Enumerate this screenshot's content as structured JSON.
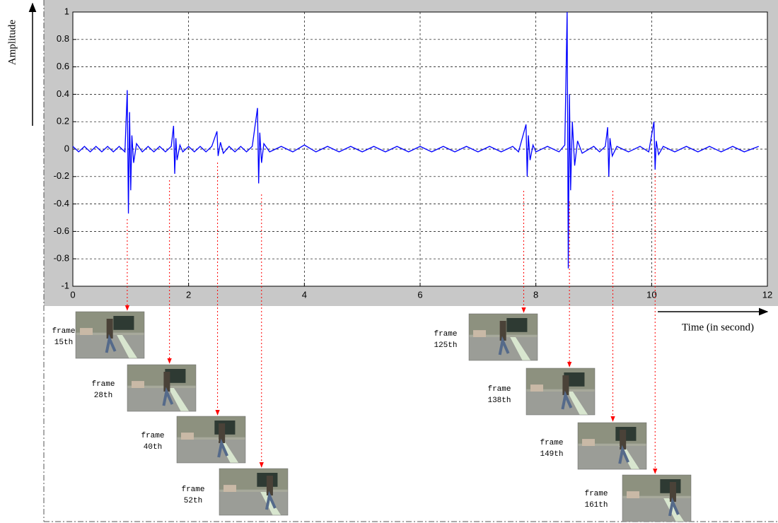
{
  "chart_data": {
    "type": "line",
    "y_label": "Amplitude",
    "x_label": "Time (in second)",
    "color": "#0000ff",
    "frame_arrow_color": "#ff0000",
    "grid": true,
    "xlim": [
      0,
      12
    ],
    "ylim": [
      -1,
      1
    ],
    "xticks": [
      0,
      2,
      4,
      6,
      8,
      10,
      12
    ],
    "yticks": [
      -1,
      -0.8,
      -0.6,
      -0.4,
      -0.2,
      0,
      0.2,
      0.4,
      0.6,
      0.8,
      1
    ],
    "x": [
      0,
      0.1,
      0.2,
      0.3,
      0.4,
      0.5,
      0.6,
      0.7,
      0.8,
      0.9,
      0.94,
      0.96,
      0.98,
      1.0,
      1.02,
      1.05,
      1.1,
      1.2,
      1.3,
      1.4,
      1.5,
      1.6,
      1.7,
      1.74,
      1.76,
      1.78,
      1.8,
      1.85,
      1.9,
      2.0,
      2.1,
      2.2,
      2.3,
      2.4,
      2.49,
      2.51,
      2.55,
      2.6,
      2.7,
      2.8,
      2.9,
      3.0,
      3.1,
      3.19,
      3.21,
      3.23,
      3.26,
      3.3,
      3.4,
      3.6,
      3.8,
      4.0,
      4.2,
      4.4,
      4.6,
      4.8,
      5.0,
      5.2,
      5.4,
      5.6,
      5.8,
      6.0,
      6.2,
      6.4,
      6.6,
      6.8,
      7.0,
      7.2,
      7.4,
      7.6,
      7.7,
      7.83,
      7.85,
      7.87,
      7.9,
      7.95,
      8.0,
      8.2,
      8.4,
      8.5,
      8.54,
      8.56,
      8.58,
      8.6,
      8.63,
      8.67,
      8.72,
      8.8,
      9.0,
      9.1,
      9.2,
      9.24,
      9.26,
      9.28,
      9.32,
      9.4,
      9.6,
      9.8,
      9.95,
      10.04,
      10.06,
      10.08,
      10.12,
      10.2,
      10.4,
      10.6,
      10.8,
      11.0,
      11.2,
      11.4,
      11.6,
      11.85
    ],
    "values": [
      0.02,
      -0.02,
      0.02,
      -0.02,
      0.02,
      -0.02,
      0.02,
      -0.02,
      0.02,
      -0.02,
      0.43,
      -0.47,
      0.27,
      -0.3,
      0.1,
      -0.1,
      0.04,
      -0.02,
      0.02,
      -0.02,
      0.02,
      -0.02,
      0.02,
      0.17,
      -0.18,
      0.08,
      -0.08,
      0.03,
      -0.02,
      0.02,
      -0.02,
      0.02,
      -0.02,
      0.02,
      0.13,
      -0.05,
      0.05,
      -0.03,
      0.02,
      -0.02,
      0.02,
      -0.02,
      0.02,
      0.3,
      -0.25,
      0.12,
      -0.1,
      0.04,
      -0.02,
      0.02,
      -0.02,
      0.03,
      -0.02,
      0.02,
      -0.02,
      0.02,
      -0.02,
      0.02,
      -0.02,
      0.02,
      -0.02,
      0.02,
      -0.02,
      0.02,
      -0.02,
      0.02,
      -0.02,
      0.02,
      -0.02,
      0.02,
      -0.02,
      0.18,
      -0.2,
      0.1,
      -0.08,
      0.03,
      -0.02,
      0.02,
      -0.02,
      0.03,
      1,
      -0.87,
      0.4,
      -0.3,
      0.2,
      -0.12,
      0.06,
      -0.03,
      0.02,
      -0.02,
      0.02,
      0.16,
      -0.2,
      0.08,
      -0.05,
      0.02,
      -0.02,
      0.02,
      -0.02,
      0.2,
      -0.15,
      0.06,
      -0.04,
      0.02,
      -0.02,
      0.02,
      -0.02,
      0.02,
      -0.02,
      0.02,
      -0.02,
      0.02
    ],
    "frames": [
      {
        "label": "frame",
        "ordinal": "15th",
        "time": 0.94
      },
      {
        "label": "frame",
        "ordinal": "28th",
        "time": 1.67
      },
      {
        "label": "frame",
        "ordinal": "40th",
        "time": 2.5
      },
      {
        "label": "frame",
        "ordinal": "52th",
        "time": 3.26
      },
      {
        "label": "frame",
        "ordinal": "125th",
        "time": 7.79
      },
      {
        "label": "frame",
        "ordinal": "138th",
        "time": 8.58
      },
      {
        "label": "frame",
        "ordinal": "149th",
        "time": 9.33
      },
      {
        "label": "frame",
        "ordinal": "161th",
        "time": 10.06
      }
    ]
  }
}
